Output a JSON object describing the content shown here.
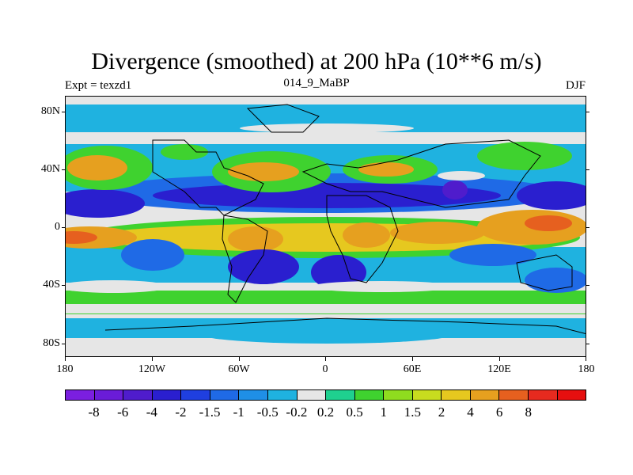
{
  "title": "Divergence (smoothed) at 200 hPa (10**6 m/s)",
  "left_string": "Expt = texzd1",
  "center_string": "014_9_MaBP",
  "right_string": "DJF",
  "y_ticks": [
    "80N",
    "40N",
    "0",
    "40S",
    "80S"
  ],
  "x_ticks": [
    "180",
    "120W",
    "60W",
    "0",
    "60E",
    "120E",
    "180"
  ],
  "colorbar": {
    "colors": [
      "#7b1fe0",
      "#6a1cd8",
      "#4f1ccc",
      "#2a1fcf",
      "#1f3fe0",
      "#1f6ae6",
      "#1f8fe6",
      "#1fb2e0",
      "#e6e6e6",
      "#1fd08f",
      "#3fd22f",
      "#8fdc1f",
      "#c8dc1f",
      "#e6c81f",
      "#e6a01f",
      "#e6601f",
      "#e62a1f",
      "#e60f0f"
    ],
    "labels": [
      "-8",
      "-6",
      "-4",
      "-2",
      "-1.5",
      "-1",
      "-0.5",
      "-0.2",
      "0.2",
      "0.5",
      "1",
      "1.5",
      "2",
      "4",
      "6",
      "8"
    ]
  },
  "map_colors": {
    "neutral": "#e6e6e6",
    "deep_blue": "#2a1fcf",
    "blue": "#1f6ae6",
    "light_blue": "#1fb2e0",
    "green": "#3fd22f",
    "yellow_green": "#8fdc1f",
    "yellow": "#e6c81f",
    "orange": "#e6a01f",
    "red_orange": "#e6601f",
    "purple": "#4f1ccc"
  }
}
